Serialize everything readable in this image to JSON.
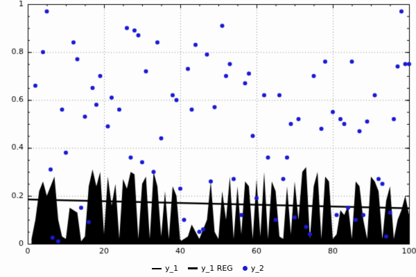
{
  "chart_data": {
    "type": "mixed",
    "title": "",
    "xlabel": "",
    "ylabel": "",
    "xlim": [
      0,
      100
    ],
    "ylim": [
      0,
      1
    ],
    "xticks": [
      0,
      20,
      40,
      60,
      80,
      100
    ],
    "yticks": [
      0,
      0.2,
      0.4,
      0.6,
      0.8,
      1
    ],
    "xtick_labels": [
      "0",
      "20",
      "40",
      "60",
      "80",
      "100"
    ],
    "ytick_labels": [
      "0",
      "0.2",
      "0.4",
      "0.6",
      "0.8",
      "1"
    ],
    "minor_x_step": 5,
    "minor_y_step": 0.05,
    "grid": true,
    "grid_color": "#888888",
    "background": "#fdfdfd",
    "legend_position": "bottom-center",
    "series": [
      {
        "name": "y_1",
        "type": "area",
        "color": "#000000",
        "x_start": 1,
        "x_step": 1,
        "values": [
          0.02,
          0.1,
          0.22,
          0.26,
          0.2,
          0.24,
          0.28,
          0.1,
          0.03,
          0.02,
          0.15,
          0.14,
          0.13,
          0.01,
          0.03,
          0.24,
          0.31,
          0.24,
          0.3,
          0.04,
          0.28,
          0.16,
          0.25,
          0.02,
          0.27,
          0.23,
          0.3,
          0.29,
          0.02,
          0.25,
          0.28,
          0.02,
          0.3,
          0.24,
          0.03,
          0.22,
          0.02,
          0.24,
          0.2,
          0.01,
          0.02,
          0.03,
          0.08,
          0.05,
          0.02,
          0.06,
          0.1,
          0.26,
          0.05,
          0.02,
          0.22,
          0.1,
          0.28,
          0.02,
          0.24,
          0.04,
          0.26,
          0.24,
          0.02,
          0.27,
          0.03,
          0.3,
          0.02,
          0.26,
          0.22,
          0.03,
          0.02,
          0.24,
          0.04,
          0.26,
          0.1,
          0.3,
          0.32,
          0.02,
          0.24,
          0.3,
          0.02,
          0.28,
          0.26,
          0.02,
          0.04,
          0.14,
          0.12,
          0.16,
          0.02,
          0.26,
          0.24,
          0.1,
          0.02,
          0.28,
          0.26,
          0.22,
          0.02,
          0.18,
          0.24,
          0.02,
          0.1,
          0.14,
          0.2,
          0.12
        ]
      },
      {
        "name": "y_1 REG",
        "type": "line",
        "color": "#000000",
        "line_width": 2.5,
        "points": [
          [
            0,
            0.185
          ],
          [
            100,
            0.148
          ]
        ]
      },
      {
        "name": "y_2",
        "type": "scatter",
        "color": "#1a1ad6",
        "point_radius": 3,
        "points": [
          [
            2,
            0.66
          ],
          [
            4,
            0.8
          ],
          [
            5,
            0.97
          ],
          [
            6,
            0.31
          ],
          [
            6.5,
            0.025
          ],
          [
            8,
            0.01
          ],
          [
            9,
            0.56
          ],
          [
            10,
            0.38
          ],
          [
            12,
            0.84
          ],
          [
            13,
            0.77
          ],
          [
            14,
            0.15
          ],
          [
            15,
            0.53
          ],
          [
            16,
            0.09
          ],
          [
            17,
            0.65
          ],
          [
            18,
            0.58
          ],
          [
            19,
            0.7
          ],
          [
            21,
            0.49
          ],
          [
            22,
            0.61
          ],
          [
            24,
            0.56
          ],
          [
            26,
            0.9
          ],
          [
            27,
            0.36
          ],
          [
            28,
            0.89
          ],
          [
            29,
            0.87
          ],
          [
            30,
            0.34
          ],
          [
            31,
            0.72
          ],
          [
            33,
            0.3
          ],
          [
            34,
            0.84
          ],
          [
            35,
            0.44
          ],
          [
            38,
            0.62
          ],
          [
            39,
            0.6
          ],
          [
            40,
            0.23
          ],
          [
            41,
            0.1
          ],
          [
            42,
            0.73
          ],
          [
            43,
            0.56
          ],
          [
            44,
            0.83
          ],
          [
            45,
            0.05
          ],
          [
            46,
            0.06
          ],
          [
            47,
            0.79
          ],
          [
            48,
            0.26
          ],
          [
            49,
            0.57
          ],
          [
            51,
            0.91
          ],
          [
            52,
            0.7
          ],
          [
            53,
            0.75
          ],
          [
            54,
            0.27
          ],
          [
            56,
            0.12
          ],
          [
            57,
            0.67
          ],
          [
            58,
            0.71
          ],
          [
            59,
            0.45
          ],
          [
            60,
            0.19
          ],
          [
            62,
            0.62
          ],
          [
            63,
            0.36
          ],
          [
            65,
            0.1
          ],
          [
            66,
            0.62
          ],
          [
            67,
            0.27
          ],
          [
            68,
            0.36
          ],
          [
            69,
            0.5
          ],
          [
            70,
            0.11
          ],
          [
            71,
            0.52
          ],
          [
            73,
            0.07
          ],
          [
            74,
            0.04
          ],
          [
            75,
            0.7
          ],
          [
            77,
            0.48
          ],
          [
            78,
            0.76
          ],
          [
            80,
            0.55
          ],
          [
            81,
            0.12
          ],
          [
            82,
            0.52
          ],
          [
            83,
            0.5
          ],
          [
            84,
            0.15
          ],
          [
            85,
            0.76
          ],
          [
            86,
            0.1
          ],
          [
            87,
            0.47
          ],
          [
            88,
            0.12
          ],
          [
            89,
            0.51
          ],
          [
            91,
            0.62
          ],
          [
            92,
            0.27
          ],
          [
            93,
            0.25
          ],
          [
            94,
            0.03
          ],
          [
            95,
            0.13
          ],
          [
            96,
            0.52
          ],
          [
            97,
            0.74
          ],
          [
            98,
            0.97
          ],
          [
            99,
            0.75
          ],
          [
            100,
            0.75
          ]
        ]
      }
    ]
  },
  "legend": {
    "items": [
      {
        "label": "y_1"
      },
      {
        "label": "y_1 REG"
      },
      {
        "label": "y_2"
      }
    ]
  },
  "colors": {
    "scatter_blue": "#1a1ad6",
    "series_black": "#000000",
    "axis": "#000000"
  }
}
